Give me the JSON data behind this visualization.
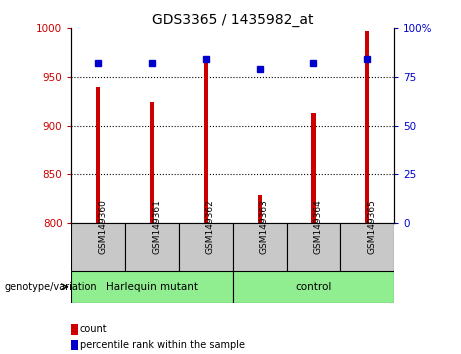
{
  "title": "GDS3365 / 1435982_at",
  "samples": [
    "GSM149360",
    "GSM149361",
    "GSM149362",
    "GSM149363",
    "GSM149364",
    "GSM149365"
  ],
  "counts": [
    940,
    924,
    965,
    829,
    913,
    997
  ],
  "percentile_ranks": [
    82,
    82,
    84,
    79,
    82,
    84
  ],
  "bar_color": "#CC0000",
  "dot_color": "#0000CC",
  "ylim_left": [
    800,
    1000
  ],
  "ylim_right": [
    0,
    100
  ],
  "yticks_left": [
    800,
    850,
    900,
    950,
    1000
  ],
  "yticks_right": [
    0,
    25,
    50,
    75,
    100
  ],
  "grid_values": [
    850,
    900,
    950
  ],
  "left_axis_color": "#CC0000",
  "right_axis_color": "#0000CC",
  "xlabel_area": "genotype/variation",
  "legend_count": "count",
  "legend_pct": "percentile rank within the sample",
  "group_box_color": "#90EE90",
  "sample_box_color": "#C8C8C8",
  "harlequin_label": "Harlequin mutant",
  "control_label": "control"
}
